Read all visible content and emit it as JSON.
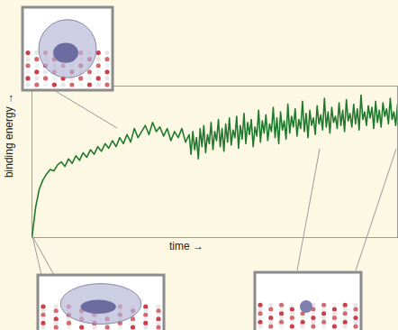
{
  "chart_data": {
    "type": "line",
    "x_label": "time →",
    "y_label": "binding energy →",
    "xlim": [
      0,
      100
    ],
    "ylim": [
      0,
      100
    ],
    "xticks": [],
    "yticks": [],
    "tick_labels": false,
    "color": "#1f7a2e",
    "x": [
      0,
      1,
      2,
      3,
      4,
      5,
      6,
      7,
      8,
      9,
      10,
      11,
      12,
      13,
      14,
      15,
      16,
      17,
      18,
      19,
      20,
      21,
      22,
      23,
      24,
      25,
      26,
      27,
      28,
      29,
      30,
      31,
      32,
      33,
      34,
      35,
      36,
      37,
      38,
      39,
      40,
      41,
      42,
      43,
      43.5,
      44,
      44.5,
      45,
      45.5,
      46,
      46.5,
      47,
      47.5,
      48,
      48.5,
      49,
      49.5,
      50,
      50.5,
      51,
      51.5,
      52,
      52.5,
      53,
      53.5,
      54,
      54.5,
      55,
      55.5,
      56,
      56.5,
      57,
      57.5,
      58,
      58.5,
      59,
      59.5,
      60,
      60.5,
      61,
      61.5,
      62,
      62.5,
      63,
      63.5,
      64,
      64.5,
      65,
      65.5,
      66,
      66.5,
      67,
      67.5,
      68,
      68.5,
      69,
      69.5,
      70,
      70.5,
      71,
      71.5,
      72,
      72.5,
      73,
      73.5,
      74,
      74.5,
      75,
      75.5,
      76,
      76.5,
      77,
      77.5,
      78,
      78.5,
      79,
      79.5,
      80,
      80.5,
      81,
      81.5,
      82,
      82.5,
      83,
      83.5,
      84,
      84.5,
      85,
      85.5,
      86,
      86.5,
      87,
      87.5,
      88,
      88.5,
      89,
      89.5,
      90,
      90.5,
      91,
      91.5,
      92,
      92.5,
      93,
      93.5,
      94,
      94.5,
      95,
      95.5,
      96,
      96.5,
      97,
      97.5,
      98,
      98.5,
      99,
      99.5,
      100
    ],
    "values": [
      0,
      20,
      32,
      38,
      42,
      45,
      44,
      48,
      50,
      47,
      52,
      49,
      54,
      51,
      56,
      53,
      58,
      55,
      60,
      57,
      62,
      59,
      64,
      60,
      66,
      62,
      68,
      63,
      72,
      66,
      70,
      74,
      68,
      76,
      70,
      73,
      67,
      72,
      64,
      70,
      66,
      72,
      63,
      68,
      55,
      70,
      58,
      66,
      52,
      72,
      60,
      74,
      56,
      68,
      62,
      76,
      58,
      70,
      64,
      78,
      60,
      72,
      57,
      75,
      63,
      79,
      61,
      71,
      66,
      80,
      59,
      74,
      65,
      82,
      62,
      76,
      68,
      78,
      60,
      73,
      67,
      84,
      63,
      77,
      69,
      81,
      64,
      75,
      70,
      86,
      66,
      79,
      62,
      83,
      71,
      77,
      65,
      88,
      69,
      80,
      73,
      85,
      67,
      78,
      72,
      90,
      70,
      82,
      66,
      84,
      74,
      79,
      68,
      87,
      75,
      81,
      71,
      92,
      73,
      83,
      69,
      86,
      76,
      80,
      72,
      89,
      74,
      84,
      70,
      91,
      77,
      82,
      73,
      88,
      75,
      85,
      71,
      94,
      78,
      83,
      74,
      87,
      79,
      86,
      72,
      90,
      76,
      84,
      73,
      89,
      80,
      85,
      75,
      92,
      78,
      83,
      74,
      88
    ]
  }
}
